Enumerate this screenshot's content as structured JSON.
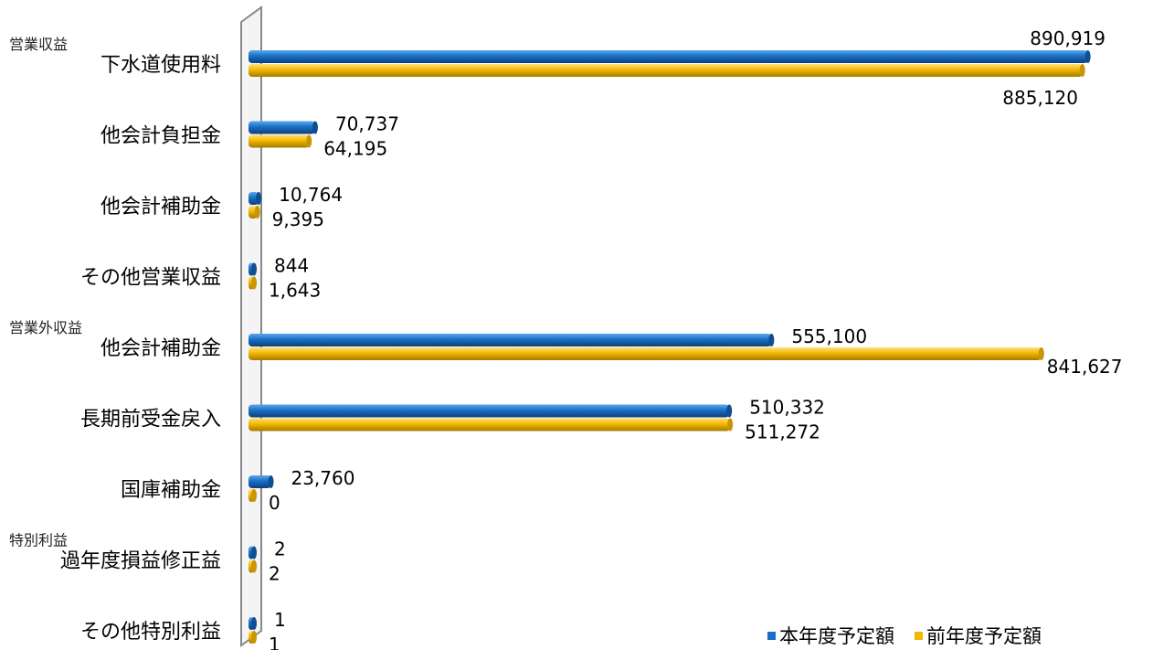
{
  "chart_data": {
    "type": "bar",
    "orientation": "horizontal",
    "categories": [
      "下水道使用料",
      "他会計負担金",
      "他会計補助金",
      "その他営業収益",
      "他会計補助金",
      "長期前受金戻入",
      "国庫補助金",
      "過年度損益修正益",
      "その他特別利益"
    ],
    "category_groups": [
      {
        "label": "営業収益",
        "start_index": 0
      },
      {
        "label": "営業外収益",
        "start_index": 4
      },
      {
        "label": "特別利益",
        "start_index": 7
      }
    ],
    "series": [
      {
        "name": "本年度予定額",
        "color": "#1a6fc4",
        "values": [
          890919,
          70737,
          10764,
          844,
          555100,
          510332,
          23760,
          2,
          1
        ],
        "labels": [
          "890,919",
          "70,737",
          "10,764",
          "844",
          "555,100",
          "510,332",
          "23,760",
          "2",
          "1"
        ]
      },
      {
        "name": "前年度予定額",
        "color": "#f2b800",
        "values": [
          885120,
          64195,
          9395,
          1643,
          841627,
          511272,
          0,
          2,
          1
        ],
        "labels": [
          "885,120",
          "64,195",
          "9,395",
          "1,643",
          "841,627",
          "511,272",
          "0",
          "2",
          "1"
        ]
      }
    ],
    "xlim": [
      0,
      900000
    ],
    "legend_position": "bottom-right",
    "grid": false
  }
}
